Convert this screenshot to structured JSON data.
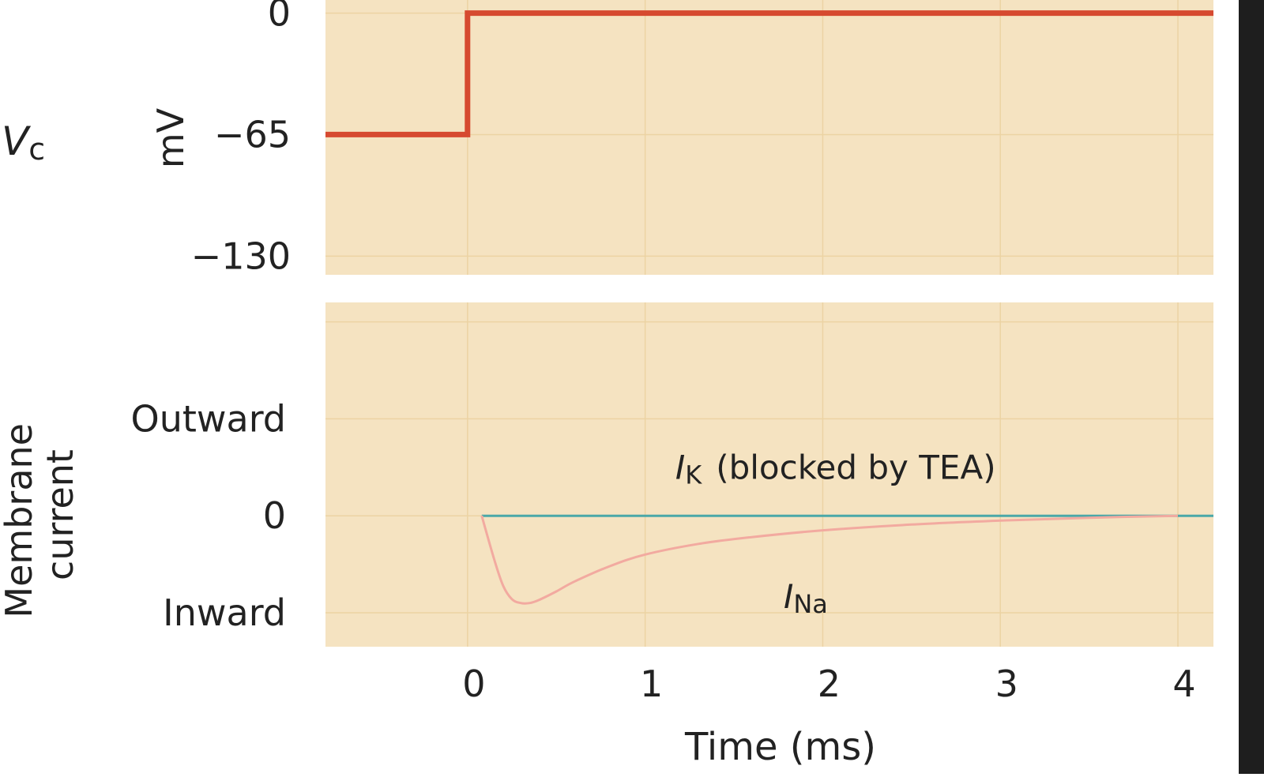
{
  "colors": {
    "plot_background": "#f5e3c1",
    "grid": "#ecd3a3",
    "voltage_trace": "#d64a30",
    "ik_trace": "#4aa8a8",
    "ina_trace": "#f2aaa0",
    "right_strip": "#1e1e1e"
  },
  "chart_data": [
    {
      "type": "line",
      "panel": "command-voltage",
      "row_label_main": "V",
      "row_label_sub": "c",
      "ylabel": "mV",
      "yticks": [
        {
          "value": 0,
          "label": "0"
        },
        {
          "value": -65,
          "label": "−65"
        },
        {
          "value": -130,
          "label": "−130"
        }
      ],
      "ylim": [
        -140,
        7
      ],
      "xlim": [
        -0.8,
        4.2
      ],
      "grid": true,
      "series": [
        {
          "x": [
            -0.8,
            0,
            0,
            4.2
          ],
          "y": [
            -65,
            -65,
            0,
            0
          ]
        }
      ]
    },
    {
      "type": "line",
      "panel": "membrane-current",
      "ylabel_lines": [
        "Membrane",
        "current"
      ],
      "yticks": [
        {
          "value": 1,
          "label": "Outward"
        },
        {
          "value": 0,
          "label": "0"
        },
        {
          "value": -1,
          "label": "Inward"
        }
      ],
      "ylim": [
        -1.35,
        2.2
      ],
      "xlim": [
        -0.8,
        4.2
      ],
      "xticks": [
        0,
        1,
        2,
        3,
        4
      ],
      "xlabel": "Time (ms)",
      "grid": true,
      "series": [
        {
          "name_main": "I",
          "name_sub": "K",
          "name_suffix": "(blocked by TEA)",
          "label_at": [
            1.17,
            0.38
          ],
          "x": [
            0.08,
            4.2
          ],
          "y": [
            0,
            0
          ]
        },
        {
          "name_main": "I",
          "name_sub": "Na",
          "label_at": [
            1.78,
            -0.95
          ],
          "x": [
            0.08,
            0.15,
            0.2,
            0.25,
            0.3,
            0.35,
            0.4,
            0.5,
            0.6,
            0.8,
            1.0,
            1.3,
            1.6,
            2.0,
            2.5,
            3.0,
            3.5,
            4.0
          ],
          "y": [
            0,
            -0.45,
            -0.72,
            -0.86,
            -0.9,
            -0.9,
            -0.87,
            -0.78,
            -0.68,
            -0.52,
            -0.4,
            -0.29,
            -0.22,
            -0.15,
            -0.09,
            -0.05,
            -0.02,
            0
          ]
        }
      ]
    }
  ]
}
